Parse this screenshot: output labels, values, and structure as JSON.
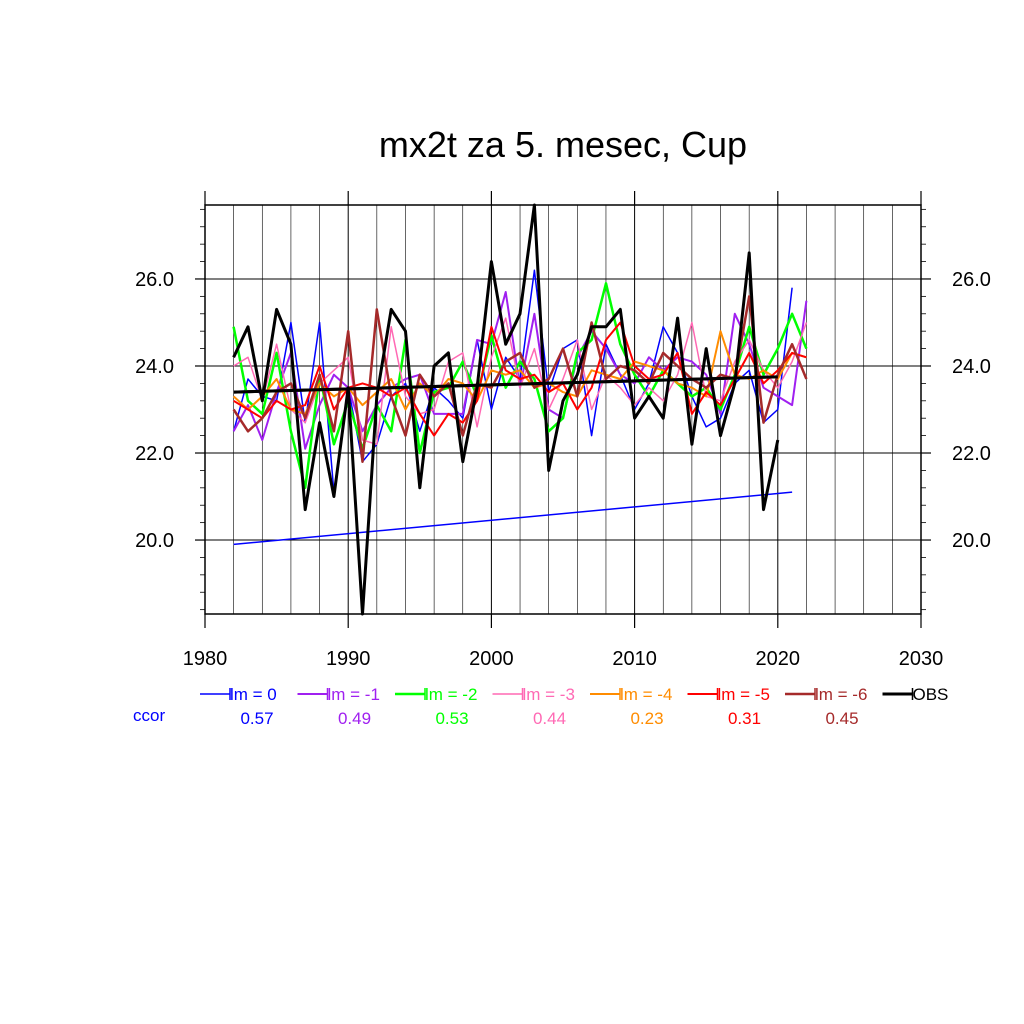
{
  "chart_data": {
    "type": "line",
    "title": "mx2t za 5. mesec, Cup",
    "xlim": [
      1980,
      2030
    ],
    "ylim": [
      18.3,
      27.7
    ],
    "x_ticks": [
      "1980",
      "1990",
      "2000",
      "2010",
      "2020",
      "2030"
    ],
    "y_ticks": [
      "20.0",
      "22.0",
      "24.0",
      "26.0"
    ],
    "grid": true,
    "legend_placement": "bottom",
    "ccor_label": "ccor",
    "ccor_color": "#0000ff",
    "series": [
      {
        "name": "lm = 0",
        "color": "#0000ff",
        "width": 1.5,
        "ccor": "0.57",
        "x": [
          1982,
          1983,
          1984,
          1985,
          1986,
          1987,
          1988,
          1989,
          1990,
          1991,
          1992,
          1993,
          1994,
          1995,
          1996,
          1997,
          1998,
          1999,
          2000,
          2001,
          2002,
          2003,
          2004,
          2005,
          2006,
          2007,
          2008,
          2009,
          2010,
          2011,
          2012,
          2013,
          2014,
          2015,
          2016,
          2017,
          2018,
          2019,
          2020,
          2021
        ],
        "y": [
          22.5,
          23.7,
          23.3,
          23.2,
          25.0,
          22.7,
          25.0,
          21.1,
          23.5,
          21.8,
          22.2,
          23.3,
          23.6,
          22.5,
          23.5,
          23.2,
          22.8,
          24.6,
          23.0,
          24.2,
          23.7,
          26.2,
          23.4,
          24.4,
          24.6,
          22.4,
          24.5,
          23.8,
          23.0,
          23.6,
          24.9,
          24.3,
          23.3,
          22.6,
          22.8,
          23.6,
          23.9,
          22.7,
          23.0,
          25.8
        ]
      },
      {
        "name": "lm = -1",
        "color": "#a020f0",
        "width": 2,
        "ccor": "0.49",
        "x": [
          1982,
          1983,
          1984,
          1985,
          1986,
          1987,
          1988,
          1989,
          1990,
          1991,
          1992,
          1993,
          1994,
          1995,
          1996,
          1997,
          1998,
          1999,
          2000,
          2001,
          2002,
          2003,
          2004,
          2005,
          2006,
          2007,
          2008,
          2009,
          2010,
          2011,
          2012,
          2013,
          2014,
          2015,
          2016,
          2017,
          2018,
          2019,
          2020,
          2021,
          2022
        ],
        "y": [
          22.5,
          23.1,
          22.3,
          23.4,
          24.3,
          22.1,
          23.1,
          23.8,
          23.5,
          22.5,
          23.1,
          23.5,
          23.7,
          23.8,
          22.9,
          22.9,
          22.9,
          24.6,
          24.5,
          25.7,
          23.5,
          25.2,
          23.0,
          22.8,
          24.2,
          24.8,
          24.4,
          23.8,
          23.6,
          24.2,
          23.9,
          24.2,
          24.1,
          23.8,
          22.9,
          25.2,
          24.5,
          23.5,
          23.3,
          23.1,
          25.5
        ]
      },
      {
        "name": "lm = -2",
        "color": "#00ff00",
        "width": 2.5,
        "ccor": "0.53",
        "x": [
          1982,
          1983,
          1984,
          1985,
          1986,
          1987,
          1988,
          1989,
          1990,
          1991,
          1992,
          1993,
          1994,
          1995,
          1996,
          1997,
          1998,
          1999,
          2000,
          2001,
          2002,
          2003,
          2004,
          2005,
          2006,
          2007,
          2008,
          2009,
          2010,
          2011,
          2012,
          2013,
          2014,
          2015,
          2016,
          2017,
          2018,
          2019,
          2020,
          2021,
          2022
        ],
        "y": [
          24.9,
          23.2,
          22.9,
          24.3,
          22.5,
          21.2,
          23.8,
          22.2,
          23.2,
          22.1,
          23.1,
          22.5,
          24.6,
          22.0,
          23.4,
          23.5,
          24.1,
          23.3,
          24.7,
          23.5,
          24.1,
          23.7,
          22.5,
          22.8,
          24.3,
          24.6,
          25.9,
          24.5,
          23.8,
          23.3,
          23.9,
          23.6,
          23.3,
          23.5,
          23.0,
          23.8,
          24.9,
          23.8,
          24.4,
          25.2,
          24.4
        ]
      },
      {
        "name": "lm = -3",
        "color": "#ff69b4",
        "width": 1.5,
        "ccor": "0.44",
        "x": [
          1982,
          1983,
          1984,
          1985,
          1986,
          1987,
          1988,
          1989,
          1990,
          1991,
          1992,
          1993,
          1994,
          1995,
          1996,
          1997,
          1998,
          1999,
          2000,
          2001,
          2002,
          2003,
          2004,
          2005,
          2006,
          2007,
          2008,
          2009,
          2010,
          2011,
          2012,
          2013,
          2014,
          2015,
          2016,
          2017,
          2018,
          2019,
          2020,
          2021,
          2022
        ],
        "y": [
          24.0,
          24.2,
          23.2,
          24.5,
          23.0,
          22.7,
          23.6,
          23.9,
          24.2,
          22.3,
          22.2,
          24.9,
          23.3,
          22.9,
          23.0,
          24.1,
          24.3,
          22.6,
          24.2,
          25.1,
          23.5,
          24.4,
          23.0,
          23.7,
          24.6,
          23.0,
          23.8,
          23.5,
          23.1,
          23.5,
          23.2,
          23.8,
          25.0,
          23.3,
          23.2,
          24.1,
          24.6,
          23.9,
          23.5,
          24.1,
          25.0
        ]
      },
      {
        "name": "lm = -4",
        "color": "#ff8c00",
        "width": 2,
        "ccor": "0.23",
        "x": [
          1982,
          1983,
          1984,
          1985,
          1986,
          1987,
          1988,
          1989,
          1990,
          1991,
          1992,
          1993,
          1994,
          1995,
          1996,
          1997,
          1998,
          1999,
          2000,
          2001,
          2002,
          2003,
          2004,
          2005,
          2006,
          2007,
          2008,
          2009,
          2010,
          2011,
          2012,
          2013,
          2014,
          2015,
          2016,
          2017,
          2018,
          2019,
          2020,
          2021,
          2022
        ],
        "y": [
          23.3,
          23.0,
          23.3,
          23.7,
          23.0,
          22.9,
          23.6,
          23.3,
          23.5,
          23.1,
          23.4,
          23.7,
          23.0,
          23.6,
          23.3,
          23.7,
          23.6,
          23.2,
          23.9,
          23.8,
          23.9,
          23.5,
          23.6,
          23.4,
          23.3,
          23.9,
          23.8,
          23.7,
          24.1,
          24.0,
          23.9,
          23.6,
          23.5,
          23.3,
          24.8,
          23.8,
          23.7,
          23.9,
          23.7,
          24.3,
          24.2
        ]
      },
      {
        "name": "lm = -5",
        "color": "#ff0000",
        "width": 2,
        "ccor": "0.31",
        "x": [
          1982,
          1983,
          1984,
          1985,
          1986,
          1987,
          1988,
          1989,
          1990,
          1991,
          1992,
          1993,
          1994,
          1995,
          1996,
          1997,
          1998,
          1999,
          2000,
          2001,
          2002,
          2003,
          2004,
          2005,
          2006,
          2007,
          2008,
          2009,
          2010,
          2011,
          2012,
          2013,
          2014,
          2015,
          2016,
          2017,
          2018,
          2019,
          2020,
          2021,
          2022
        ],
        "y": [
          23.2,
          23.0,
          22.8,
          23.2,
          23.0,
          23.1,
          24.0,
          23.0,
          23.5,
          23.6,
          23.5,
          23.3,
          23.5,
          22.9,
          22.4,
          22.9,
          22.7,
          23.2,
          24.9,
          23.9,
          23.7,
          23.8,
          23.4,
          23.6,
          23.0,
          23.5,
          24.6,
          25.0,
          24.0,
          23.7,
          23.8,
          24.3,
          22.9,
          23.4,
          23.1,
          23.7,
          24.3,
          23.6,
          23.9,
          24.3,
          24.2
        ]
      },
      {
        "name": "lm = -6",
        "color": "#a52a2a",
        "width": 2.5,
        "ccor": "0.45",
        "x": [
          1982,
          1983,
          1984,
          1985,
          1986,
          1987,
          1988,
          1989,
          1990,
          1991,
          1992,
          1993,
          1994,
          1995,
          1996,
          1997,
          1998,
          1999,
          2000,
          2001,
          2002,
          2003,
          2004,
          2005,
          2006,
          2007,
          2008,
          2009,
          2010,
          2011,
          2012,
          2013,
          2014,
          2015,
          2016,
          2017,
          2018,
          2019,
          2020,
          2021,
          2022
        ],
        "y": [
          23.0,
          22.5,
          22.8,
          23.4,
          23.6,
          22.8,
          23.8,
          22.5,
          24.8,
          21.8,
          25.3,
          23.3,
          22.4,
          23.8,
          23.3,
          23.6,
          22.4,
          23.6,
          23.5,
          24.1,
          24.3,
          23.5,
          23.7,
          24.4,
          23.3,
          25.0,
          23.7,
          24.0,
          23.9,
          23.6,
          24.3,
          24.0,
          23.7,
          23.5,
          23.8,
          23.7,
          25.6,
          22.7,
          23.8,
          24.5,
          23.7
        ]
      },
      {
        "name": "OBS",
        "color": "#000000",
        "width": 3,
        "ccor": "",
        "x": [
          1982,
          1983,
          1984,
          1985,
          1986,
          1987,
          1988,
          1989,
          1990,
          1991,
          1992,
          1993,
          1994,
          1995,
          1996,
          1997,
          1998,
          1999,
          2000,
          2001,
          2002,
          2003,
          2004,
          2005,
          2006,
          2007,
          2008,
          2009,
          2010,
          2011,
          2012,
          2013,
          2014,
          2015,
          2016,
          2017,
          2018,
          2019,
          2020
        ],
        "y": [
          24.2,
          24.9,
          23.2,
          25.3,
          24.5,
          20.7,
          22.7,
          21.0,
          23.5,
          18.3,
          23.3,
          25.3,
          24.8,
          21.2,
          24.0,
          24.3,
          21.8,
          23.5,
          26.4,
          24.5,
          25.2,
          27.7,
          21.6,
          23.2,
          23.8,
          24.9,
          24.9,
          25.3,
          22.8,
          23.3,
          22.8,
          25.1,
          22.2,
          24.4,
          22.4,
          23.6,
          26.6,
          20.7,
          22.3
        ]
      }
    ],
    "trend_lines": [
      {
        "color": "#0000ff",
        "width": 1.5,
        "x": [
          1982,
          2021
        ],
        "y": [
          19.9,
          21.1
        ]
      },
      {
        "color": "#000000",
        "width": 3,
        "x": [
          1982,
          2020
        ],
        "y": [
          23.4,
          23.75
        ]
      }
    ]
  }
}
